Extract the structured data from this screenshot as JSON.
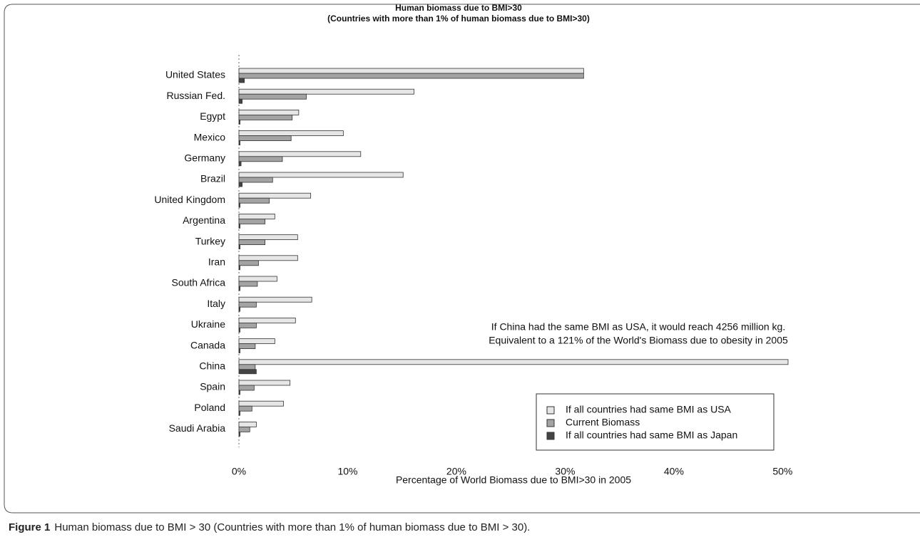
{
  "chart_data": {
    "type": "hbar",
    "title": "Human biomass due to BMI>30",
    "subtitle": "(Countries with more than 1% of human biomass due to BMI>30)",
    "x_label": "Percentage of World Biomass due to BMI>30 in 2005",
    "categories": [
      "United States",
      "Russian Fed.",
      "Egypt",
      "Mexico",
      "Germany",
      "Brazil",
      "United Kingdom",
      "Argentina",
      "Turkey",
      "Iran",
      "South Africa",
      "Italy",
      "Ukraine",
      "Canada",
      "China",
      "Spain",
      "Poland",
      "Saudi Arabia"
    ],
    "series": [
      {
        "name": "If all countries had same BMI as USA",
        "color": "#e6e6e6",
        "values": [
          31.7,
          16.1,
          5.5,
          9.6,
          11.2,
          15.1,
          6.6,
          3.3,
          5.4,
          5.4,
          3.5,
          6.7,
          5.2,
          3.3,
          50.5,
          4.7,
          4.1,
          1.6
        ]
      },
      {
        "name": "Current Biomass",
        "color": "#a3a3a3",
        "values": [
          31.7,
          6.2,
          4.9,
          4.8,
          4.0,
          3.1,
          2.8,
          2.4,
          2.4,
          1.8,
          1.7,
          1.6,
          1.6,
          1.5,
          1.5,
          1.4,
          1.2,
          1.0
        ]
      },
      {
        "name": "If all countries had same BMI as Japan",
        "color": "#444444",
        "values": [
          0.5,
          0.3,
          0.1,
          0.1,
          0.2,
          0.3,
          0.1,
          0.1,
          0.1,
          0.1,
          0.1,
          0.1,
          0.1,
          0.1,
          1.6,
          0.1,
          0.1,
          0.1
        ]
      }
    ],
    "xlim": [
      0,
      50.5
    ],
    "xticks": [
      {
        "value": 0,
        "label": "0%"
      },
      {
        "value": 10,
        "label": "10%"
      },
      {
        "value": 20,
        "label": "20%"
      },
      {
        "value": 30,
        "label": "30%"
      },
      {
        "value": 40,
        "label": "40%"
      },
      {
        "value": 50,
        "label": "50%"
      }
    ],
    "annotations": [
      "If China had the same BMI as USA, it would reach 4256 million kg.",
      "Equivalent to a 121% of the World's Biomass due to obesity in 2005"
    ],
    "legend": "lower right"
  },
  "caption": {
    "label": "Figure 1",
    "text": "Human biomass due to BMI > 30 (Countries with more than 1% of human biomass due to BMI > 30)."
  }
}
